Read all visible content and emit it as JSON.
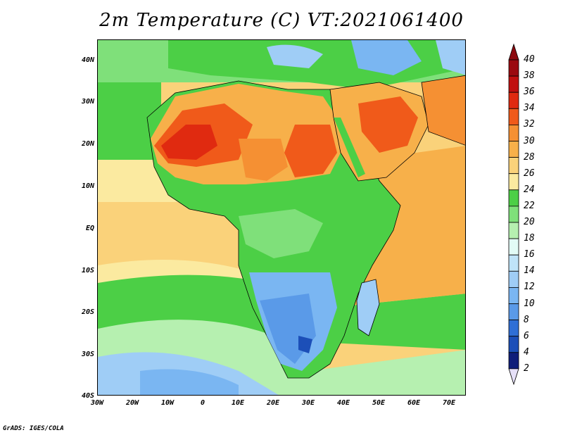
{
  "title": "2m Temperature (C) VT:2021061400",
  "footer": "GrADS: IGES/COLA",
  "lat_labels": [
    "40N",
    "30N",
    "20N",
    "10N",
    "EQ",
    "10S",
    "20S",
    "30S",
    "40S"
  ],
  "lon_labels": [
    "30W",
    "20W",
    "10W",
    "0",
    "10E",
    "20E",
    "30E",
    "40E",
    "50E",
    "60E",
    "70E"
  ],
  "colorbar": {
    "values": [
      "40",
      "38",
      "36",
      "34",
      "32",
      "30",
      "28",
      "26",
      "24",
      "22",
      "20",
      "18",
      "16",
      "14",
      "12",
      "10",
      "8",
      "6",
      "4",
      "2"
    ],
    "colors": [
      "#9b0a10",
      "#c01010",
      "#e02a10",
      "#f05a1a",
      "#f59033",
      "#f7b04a",
      "#fad27a",
      "#fbeaa0",
      "#4ccf46",
      "#7fe07a",
      "#b6f0b0",
      "#e2fbf6",
      "#bfe3f8",
      "#9fcdf6",
      "#7ab6f2",
      "#5a9ae8",
      "#2f6fd6",
      "#1c4fb8",
      "#0f1e7a"
    ],
    "arrow_top_color": "#8c0a0f",
    "arrow_bottom_color": "#e6e0f8"
  },
  "map_colors": {
    "ocean_warm": "#fad27a",
    "ocean_mild": "#fbeaa0",
    "ocean_cool": "#4ccf46",
    "ocean_cooler": "#b6f0b0",
    "ocean_cold": "#9fcdf6",
    "land_green": "#4ccf46",
    "land_hot": "#f59033",
    "land_hotter": "#f05a1a",
    "land_hottest": "#e02a10",
    "land_cool": "#7ab6f2",
    "land_cold": "#2f6fd6",
    "border": "#000000"
  }
}
